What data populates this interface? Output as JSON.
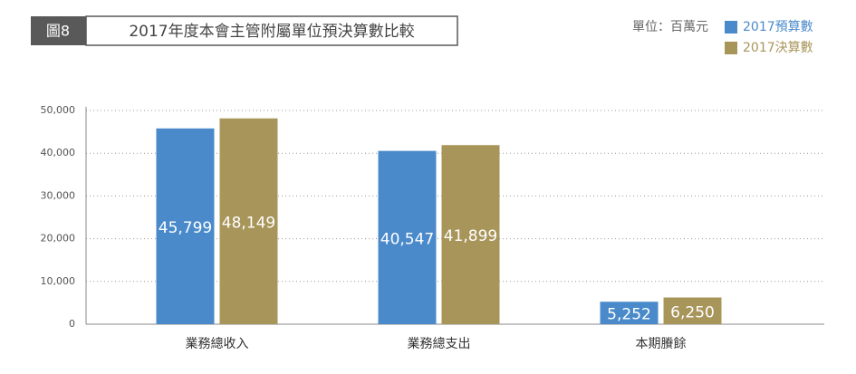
{
  "chart_data": {
    "type": "bar",
    "figure_label": "圖8",
    "title": "2017年度本會主管附屬單位預決算數比較",
    "unit": "單位：百萬元",
    "categories": [
      "業務總收入",
      "業務總支出",
      "本期賸餘"
    ],
    "series": [
      {
        "name": "2017預算數",
        "color": "#4a8acb",
        "values": [
          45799,
          40547,
          5252
        ],
        "value_labels": [
          "45,799",
          "40,547",
          "5,252"
        ]
      },
      {
        "name": "2017決算數",
        "color": "#a8955a",
        "values": [
          48149,
          41899,
          6250
        ],
        "value_labels": [
          "48,149",
          "41,899",
          "6,250"
        ]
      }
    ],
    "ylim": [
      0,
      50000
    ],
    "yticks": [
      0,
      {
        "value": 10000,
        "label": "10,000"
      },
      {
        "value": 20000,
        "label": "20,000"
      },
      {
        "value": 30000,
        "label": "30,000"
      },
      {
        "value": 40000,
        "label": "40,000"
      },
      {
        "value": 50000,
        "label": "50,000"
      }
    ],
    "grid": true
  }
}
